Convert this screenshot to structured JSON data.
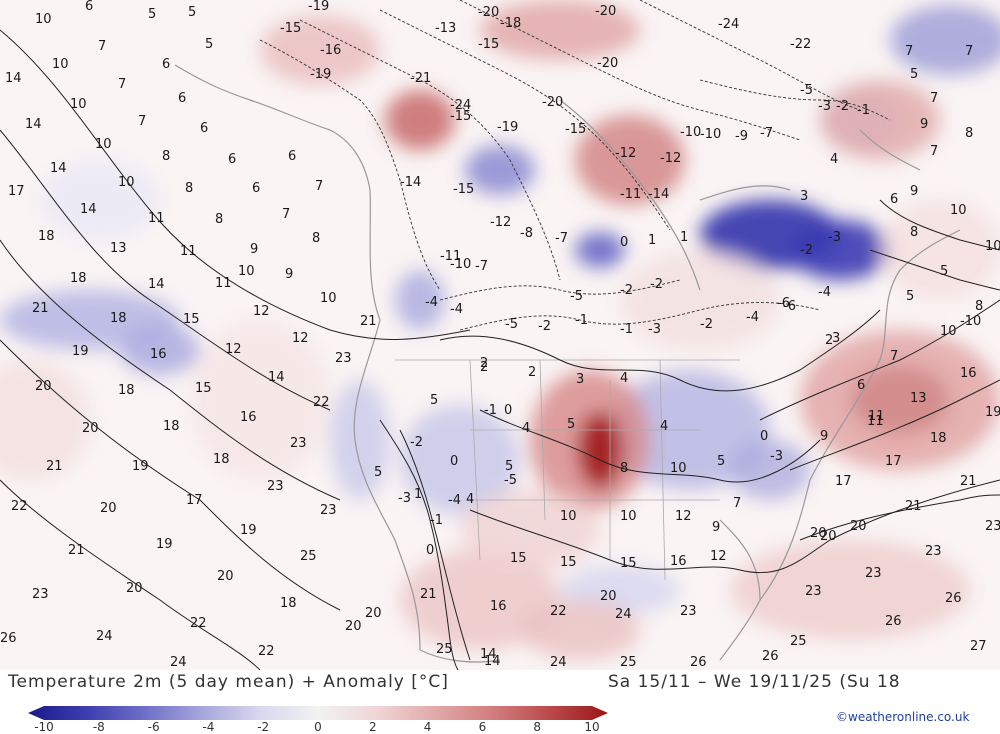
{
  "footer": {
    "title": "Temperature 2m (5 day mean) + Anomaly [°C]",
    "period": "Sa 15/11 – We 19/11/25 (Su 18",
    "credit": "©weatheronline.co.uk"
  },
  "legend": {
    "ticks": [
      "-10",
      "-8",
      "-6",
      "-4",
      "-2",
      "0",
      "2",
      "4",
      "6",
      "8",
      "10"
    ],
    "colors": [
      "#1a1a8c",
      "#3d3db0",
      "#6e6ec8",
      "#a6a6dc",
      "#d8d8ef",
      "#f2f2f2",
      "#f0d6d6",
      "#e2aaaa",
      "#d27e7e",
      "#bb4a4a",
      "#9a1515"
    ]
  },
  "labels": [
    {
      "t": "10"
    },
    {
      "t": "6"
    },
    {
      "t": "5"
    },
    {
      "t": "5"
    },
    {
      "t": "7"
    },
    {
      "t": "5"
    },
    {
      "t": "6"
    },
    {
      "t": "10"
    },
    {
      "t": "14"
    },
    {
      "t": "7"
    },
    {
      "t": "6"
    },
    {
      "t": "10"
    },
    {
      "t": "7"
    },
    {
      "t": "14"
    },
    {
      "t": "6"
    },
    {
      "t": "10"
    },
    {
      "t": "8"
    },
    {
      "t": "6"
    },
    {
      "t": "6"
    },
    {
      "t": "14"
    },
    {
      "t": "17"
    },
    {
      "t": "10"
    },
    {
      "t": "8"
    },
    {
      "t": "6"
    },
    {
      "t": "7"
    },
    {
      "t": "14"
    },
    {
      "t": "11"
    },
    {
      "t": "8"
    },
    {
      "t": "7"
    },
    {
      "t": "18"
    },
    {
      "t": "13"
    },
    {
      "t": "11"
    },
    {
      "t": "9"
    },
    {
      "t": "8"
    },
    {
      "t": "10"
    },
    {
      "t": "9"
    },
    {
      "t": "18"
    },
    {
      "t": "14"
    },
    {
      "t": "11"
    },
    {
      "t": "10"
    },
    {
      "t": "21"
    },
    {
      "t": "18"
    },
    {
      "t": "15"
    },
    {
      "t": "12"
    },
    {
      "t": "21"
    },
    {
      "t": "19"
    },
    {
      "t": "16"
    },
    {
      "t": "12"
    },
    {
      "t": "12"
    },
    {
      "t": "23"
    },
    {
      "t": "20"
    },
    {
      "t": "18"
    },
    {
      "t": "15"
    },
    {
      "t": "14"
    },
    {
      "t": "22"
    },
    {
      "t": "20"
    },
    {
      "t": "18"
    },
    {
      "t": "16"
    },
    {
      "t": "23"
    },
    {
      "t": "21"
    },
    {
      "t": "19"
    },
    {
      "t": "18"
    },
    {
      "t": "23"
    },
    {
      "t": "22"
    },
    {
      "t": "20"
    },
    {
      "t": "17"
    },
    {
      "t": "23"
    },
    {
      "t": "21"
    },
    {
      "t": "19"
    },
    {
      "t": "19"
    },
    {
      "t": "25"
    },
    {
      "t": "23"
    },
    {
      "t": "20"
    },
    {
      "t": "20"
    },
    {
      "t": "18"
    },
    {
      "t": "26"
    },
    {
      "t": "24"
    },
    {
      "t": "22"
    },
    {
      "t": "20"
    },
    {
      "t": "20"
    },
    {
      "t": "22"
    },
    {
      "t": "24"
    },
    {
      "t": "-19"
    },
    {
      "t": "-20"
    },
    {
      "t": "-18"
    },
    {
      "t": "-20"
    },
    {
      "t": "-24"
    },
    {
      "t": "-15"
    },
    {
      "t": "-13"
    },
    {
      "t": "-16"
    },
    {
      "t": "-15"
    },
    {
      "t": "-20"
    },
    {
      "t": "-22"
    },
    {
      "t": "-19"
    },
    {
      "t": "-21"
    },
    {
      "t": "-24"
    },
    {
      "t": "-20"
    },
    {
      "t": "-15"
    },
    {
      "t": "-19"
    },
    {
      "t": "-15"
    },
    {
      "t": "-14"
    },
    {
      "t": "-15"
    },
    {
      "t": "-12"
    },
    {
      "t": "-8"
    },
    {
      "t": "-7"
    },
    {
      "t": "-11"
    },
    {
      "t": "-10"
    },
    {
      "t": "-7"
    },
    {
      "t": "-5"
    },
    {
      "t": "-4"
    },
    {
      "t": "-4"
    },
    {
      "t": "-1"
    },
    {
      "t": "-2"
    },
    {
      "t": "2"
    },
    {
      "t": "-5"
    },
    {
      "t": "-2"
    },
    {
      "t": "-2"
    },
    {
      "t": "-1"
    },
    {
      "t": "-3"
    },
    {
      "t": "-2"
    },
    {
      "t": "0"
    },
    {
      "t": "1"
    },
    {
      "t": "1"
    },
    {
      "t": "-4"
    },
    {
      "t": "-6"
    },
    {
      "t": "-4"
    },
    {
      "t": "-2"
    },
    {
      "t": "-3"
    },
    {
      "t": "-10"
    },
    {
      "t": "-12"
    },
    {
      "t": "-11"
    },
    {
      "t": "-14"
    },
    {
      "t": "-12"
    },
    {
      "t": "-10"
    },
    {
      "t": "-9"
    },
    {
      "t": "-7"
    },
    {
      "t": "-5"
    },
    {
      "t": "-3"
    },
    {
      "t": "-2"
    },
    {
      "t": "-1"
    },
    {
      "t": "3"
    },
    {
      "t": "4"
    },
    {
      "t": "7"
    },
    {
      "t": "5"
    },
    {
      "t": "7"
    },
    {
      "t": "7"
    },
    {
      "t": "9"
    },
    {
      "t": "8"
    },
    {
      "t": "7"
    },
    {
      "t": "9"
    },
    {
      "t": "6"
    },
    {
      "t": "10"
    },
    {
      "t": "8"
    },
    {
      "t": "10"
    },
    {
      "t": "5"
    },
    {
      "t": "5"
    },
    {
      "t": "8"
    },
    {
      "t": "10"
    },
    {
      "t": "-10"
    },
    {
      "t": "7"
    },
    {
      "t": "13"
    },
    {
      "t": "16"
    },
    {
      "t": "19"
    },
    {
      "t": "11"
    },
    {
      "t": "18"
    },
    {
      "t": "17"
    },
    {
      "t": "21"
    },
    {
      "t": "17"
    },
    {
      "t": "21"
    },
    {
      "t": "23"
    },
    {
      "t": "20"
    },
    {
      "t": "20"
    },
    {
      "t": "23"
    },
    {
      "t": "23"
    },
    {
      "t": "26"
    },
    {
      "t": "26"
    },
    {
      "t": "27"
    },
    {
      "t": "25"
    },
    {
      "t": "26"
    },
    {
      "t": "26"
    },
    {
      "t": "25"
    },
    {
      "t": "23"
    },
    {
      "t": "22"
    },
    {
      "t": "24"
    },
    {
      "t": "20"
    },
    {
      "t": "23"
    },
    {
      "t": "16"
    },
    {
      "t": "15"
    },
    {
      "t": "15"
    },
    {
      "t": "15"
    },
    {
      "t": "16"
    },
    {
      "t": "12"
    },
    {
      "t": "12"
    },
    {
      "t": "10"
    },
    {
      "t": "10"
    },
    {
      "t": "9"
    },
    {
      "t": "10"
    },
    {
      "t": "8"
    },
    {
      "t": "5"
    },
    {
      "t": "4"
    },
    {
      "t": "5"
    },
    {
      "t": "4"
    },
    {
      "t": "5"
    },
    {
      "t": "0"
    },
    {
      "t": "9"
    },
    {
      "t": "11"
    },
    {
      "t": "7"
    },
    {
      "t": "14"
    },
    {
      "t": "25"
    },
    {
      "t": "21"
    },
    {
      "t": "14"
    },
    {
      "t": "24"
    },
    {
      "t": "-2"
    },
    {
      "t": "-1"
    },
    {
      "t": "0"
    },
    {
      "t": "3"
    },
    {
      "t": "4"
    },
    {
      "t": "2"
    },
    {
      "t": "2"
    },
    {
      "t": "5"
    },
    {
      "t": "-5"
    },
    {
      "t": "-4"
    },
    {
      "t": "-3"
    },
    {
      "t": "-1"
    },
    {
      "t": "0"
    },
    {
      "t": "5"
    },
    {
      "t": "1"
    },
    {
      "t": "0"
    },
    {
      "t": "4"
    },
    {
      "t": "-3"
    },
    {
      "t": "-6"
    },
    {
      "t": "3"
    },
    {
      "t": "6"
    },
    {
      "t": "20"
    },
    {
      "t": "2"
    }
  ]
}
